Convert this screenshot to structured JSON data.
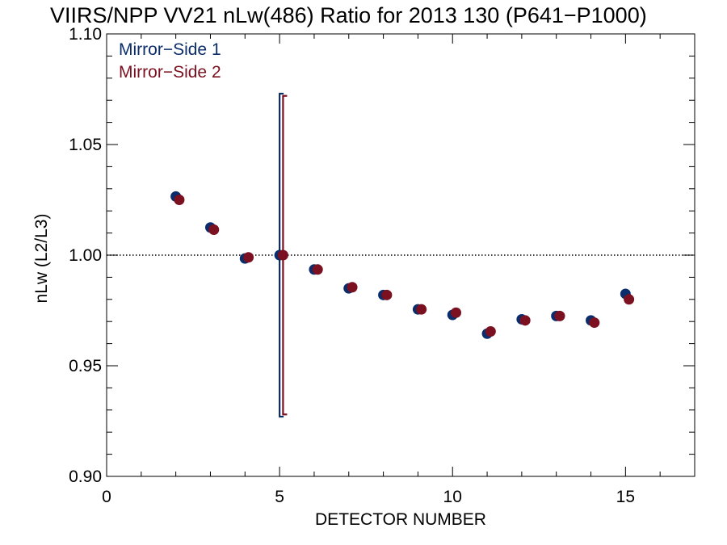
{
  "chart_data": {
    "type": "scatter",
    "title": "VIIRS/NPP VV21 nLw(486) Ratio for 2013 130 (P641−P1000)",
    "xlabel": "DETECTOR NUMBER",
    "ylabel": "nLw (L2/L3)",
    "xlim": [
      0,
      17
    ],
    "ylim": [
      0.9,
      1.1
    ],
    "x_ticks": [
      0,
      5,
      10,
      15
    ],
    "x_tick_labels": [
      "0",
      "5",
      "10",
      "15"
    ],
    "y_ticks": [
      0.9,
      0.95,
      1.0,
      1.05,
      1.1
    ],
    "y_tick_labels": [
      "0.90",
      "0.95",
      "1.00",
      "1.05",
      "1.10"
    ],
    "reference_line": 1.0,
    "legend_position": "top-left",
    "series": [
      {
        "name": "Mirror−Side 1",
        "color": "#0b2d6b",
        "x": [
          2,
          3,
          4,
          5,
          6,
          7,
          8,
          9,
          10,
          11,
          12,
          13,
          14,
          15
        ],
        "values": [
          1.0265,
          1.0125,
          0.9985,
          1.0,
          0.9935,
          0.985,
          0.982,
          0.9755,
          0.973,
          0.9645,
          0.971,
          0.9725,
          0.9705,
          0.9825
        ],
        "error_bar": {
          "x": 5,
          "low": 0.927,
          "high": 1.073
        }
      },
      {
        "name": "Mirror−Side 2",
        "color": "#7a1020",
        "x": [
          2.1,
          3.1,
          4.1,
          5.1,
          6.1,
          7.1,
          8.1,
          9.1,
          10.1,
          11.1,
          12.1,
          13.1,
          14.1,
          15.1
        ],
        "values": [
          1.025,
          1.0115,
          0.999,
          1.0,
          0.9935,
          0.9855,
          0.982,
          0.9755,
          0.974,
          0.9655,
          0.9705,
          0.9725,
          0.9695,
          0.98
        ],
        "error_bar": {
          "x": 5.1,
          "low": 0.928,
          "high": 1.072
        }
      }
    ]
  }
}
